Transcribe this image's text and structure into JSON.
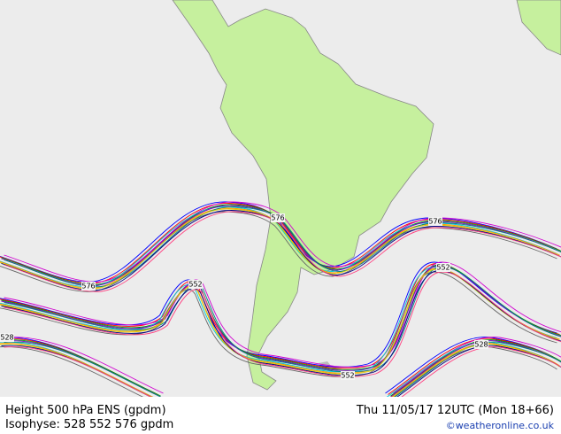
{
  "footer": {
    "title": "Height 500 hPa ENS (gpdm)",
    "datetime": "Thu 11/05/17 12UTC (Mon 18+66)",
    "isophyse": "Isophyse: 528 552 576 gpdm",
    "credit": "©weatheronline.co.uk"
  },
  "contour_labels": [
    "576",
    "576",
    "576",
    "552",
    "552",
    "552",
    "528",
    "528"
  ]
}
